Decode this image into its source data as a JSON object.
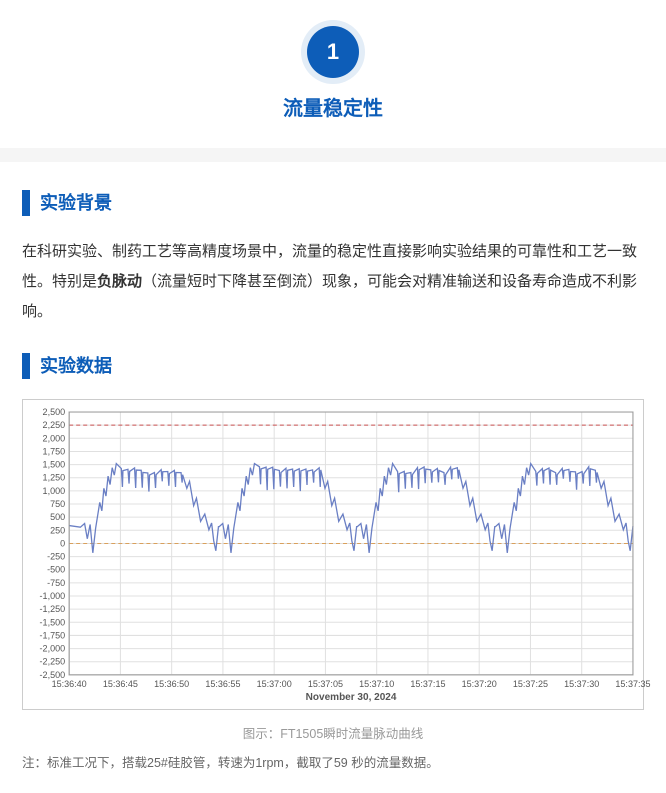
{
  "header": {
    "badge_number": "1",
    "title": "流量稳定性"
  },
  "section1": {
    "heading": "实验背景",
    "text_before_bold": "在科研实验、制药工艺等高精度场景中，流量的稳定性直接影响实验结果的可靠性和工艺一致性。特别是",
    "bold_term": "负脉动",
    "text_after_bold": "（流量短时下降甚至倒流）现象，可能会对精准输送和设备寿命造成不利影响。"
  },
  "section2": {
    "heading": "实验数据"
  },
  "chart": {
    "type": "line",
    "y_ticks": [
      -2500,
      -2250,
      -2000,
      -1750,
      -1500,
      -1250,
      -1000,
      -750,
      -500,
      -250,
      0,
      250,
      500,
      750,
      1000,
      1250,
      1500,
      1750,
      2000,
      2250,
      2500
    ],
    "y_min": -2500,
    "y_max": 2500,
    "reference_y": 2250,
    "zero_y": 0,
    "x_labels": [
      "15:36:40",
      "15:36:45",
      "15:36:50",
      "15:36:55",
      "15:37:00",
      "15:37:05",
      "15:37:10",
      "15:37:15",
      "15:37:20",
      "15:37:25",
      "15:37:30",
      "15:37:35"
    ],
    "x_date": "November 30, 2024",
    "line_color": "#6a7fc4",
    "grid_color": "#e0e0e0",
    "zero_color": "#d9a05c",
    "ref_color": "#c94f4f",
    "frame_color": "#999999",
    "plot_bg": "#ffffff",
    "period_count": 4,
    "baseline": 350,
    "peak": 1520,
    "trough_min": -180,
    "plateau_noise_drop": 420
  },
  "caption": "图示：FT1505瞬时流量脉动曲线",
  "footnote": "注：标准工况下，搭载25#硅胶管，转速为1rpm，截取了59 秒的流量数据。"
}
